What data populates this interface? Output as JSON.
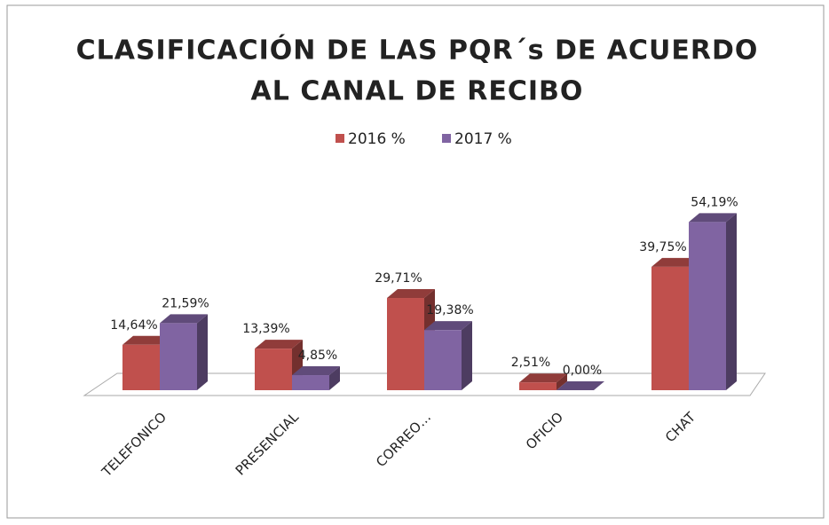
{
  "chart_data": {
    "type": "bar3d",
    "title": [
      "CLASIFICACIÓN DE LAS PQR´s DE ACUERDO",
      "AL CANAL DE RECIBO"
    ],
    "categories": [
      "TELEFONICO",
      "PRESENCIAL",
      "CORREO…",
      "OFICIO",
      "CHAT"
    ],
    "series": [
      {
        "name": "2016 %",
        "color": "#c0504d",
        "values": [
          14.64,
          13.39,
          29.71,
          2.51,
          39.75
        ],
        "value_labels": [
          "14,64%",
          "13,39%",
          "29,71%",
          "2,51%",
          "39,75%"
        ]
      },
      {
        "name": "2017 %",
        "color": "#8064a2",
        "values": [
          21.59,
          4.85,
          19.38,
          0.0,
          54.19
        ],
        "value_labels": [
          "21,59%",
          "4,85%",
          "19,38%",
          "0,00%",
          "54,19%"
        ]
      }
    ],
    "legend": "top"
  }
}
